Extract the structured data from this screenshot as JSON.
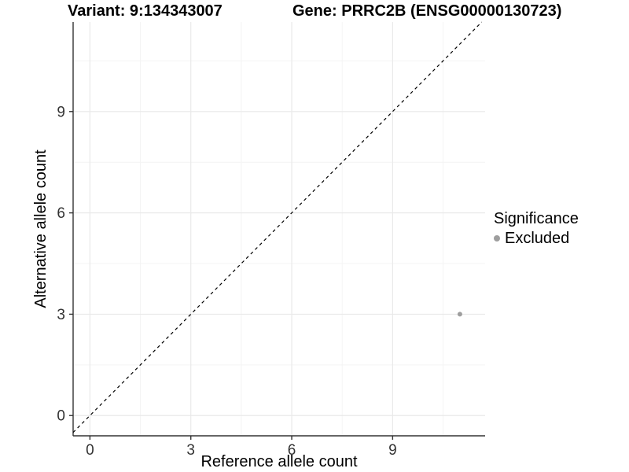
{
  "chart_data": {
    "type": "scatter",
    "titles": {
      "left": "Variant: 9:134343007",
      "right": "Gene: PRRC2B (ENSG00000130723)"
    },
    "xlabel": "Reference allele count",
    "ylabel": "Alternative allele count",
    "xlim": [
      -0.5,
      11.75
    ],
    "ylim": [
      -0.6,
      11.65
    ],
    "xticks": [
      0,
      3,
      6,
      9
    ],
    "yticks": [
      0,
      3,
      6,
      9
    ],
    "minor_ticks": [
      1.5,
      4.5,
      7.5,
      10.5
    ],
    "grid": "major+minor",
    "points": [
      {
        "x": 11,
        "y": 3,
        "series": "Excluded",
        "color": "#9e9e9e",
        "radius": 3
      }
    ],
    "identity_line": {
      "slope": 1,
      "intercept": 0,
      "style": "dashed",
      "color": "#000000"
    },
    "legend": {
      "title": "Significance",
      "position": "right",
      "items": [
        {
          "label": "Excluded",
          "color": "#9e9e9e"
        }
      ]
    }
  },
  "colors": {
    "background": "#ffffff",
    "axis_line": "#333333",
    "tick_label": "#333333",
    "axis_title": "#000000",
    "grid_major": "#e9e9e9",
    "grid_minor": "#f4f4f4"
  }
}
